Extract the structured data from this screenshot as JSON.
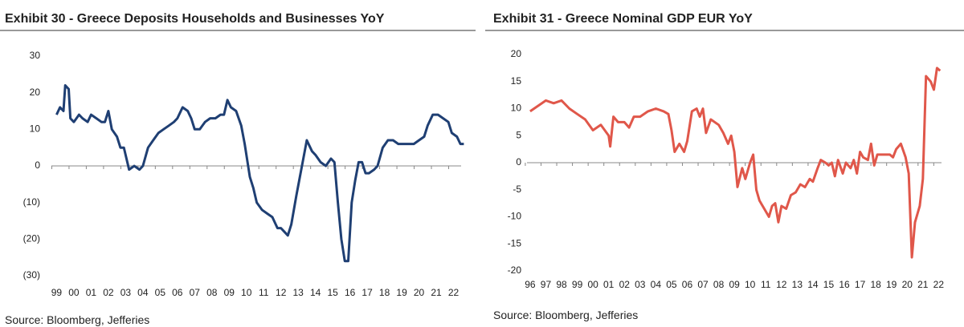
{
  "chart_data": [
    {
      "type": "line",
      "title": "Exhibit 30 - Greece Deposits Households and Businesses YoY",
      "source": "Source: Bloomberg, Jefferies",
      "color": "#1f3f73",
      "xlim": [
        1998.7,
        2023
      ],
      "ylim": [
        -30,
        30
      ],
      "yticks": [
        {
          "value": 30,
          "label": "30"
        },
        {
          "value": 20,
          "label": "20"
        },
        {
          "value": 10,
          "label": "10"
        },
        {
          "value": 0,
          "label": "0"
        },
        {
          "value": -10,
          "label": "(10)"
        },
        {
          "value": -20,
          "label": "(20)"
        },
        {
          "value": -30,
          "label": "(30)"
        }
      ],
      "xticks": [
        {
          "value": 1999,
          "label": "99"
        },
        {
          "value": 2000,
          "label": "00"
        },
        {
          "value": 2001,
          "label": "01"
        },
        {
          "value": 2002,
          "label": "02"
        },
        {
          "value": 2003,
          "label": "03"
        },
        {
          "value": 2004,
          "label": "04"
        },
        {
          "value": 2005,
          "label": "05"
        },
        {
          "value": 2006,
          "label": "06"
        },
        {
          "value": 2007,
          "label": "07"
        },
        {
          "value": 2008,
          "label": "08"
        },
        {
          "value": 2009,
          "label": "09"
        },
        {
          "value": 2010,
          "label": "10"
        },
        {
          "value": 2011,
          "label": "11"
        },
        {
          "value": 2012,
          "label": "12"
        },
        {
          "value": 2013,
          "label": "13"
        },
        {
          "value": 2014,
          "label": "14"
        },
        {
          "value": 2015,
          "label": "15"
        },
        {
          "value": 2016,
          "label": "16"
        },
        {
          "value": 2017,
          "label": "17"
        },
        {
          "value": 2018,
          "label": "18"
        },
        {
          "value": 2019,
          "label": "19"
        },
        {
          "value": 2020,
          "label": "20"
        },
        {
          "value": 2021,
          "label": "21"
        },
        {
          "value": 2022,
          "label": "22"
        }
      ],
      "x": [
        1999.0,
        1999.2,
        1999.4,
        1999.5,
        1999.7,
        1999.8,
        2000.0,
        2000.3,
        2000.5,
        2000.8,
        2001.0,
        2001.3,
        2001.6,
        2001.8,
        2002.0,
        2002.2,
        2002.5,
        2002.7,
        2002.9,
        2003.1,
        2003.2,
        2003.5,
        2003.8,
        2004.0,
        2004.3,
        2004.6,
        2004.9,
        2005.2,
        2005.5,
        2005.8,
        2006.0,
        2006.3,
        2006.6,
        2006.8,
        2007.0,
        2007.3,
        2007.6,
        2007.9,
        2008.2,
        2008.5,
        2008.7,
        2008.9,
        2009.1,
        2009.4,
        2009.7,
        2009.9,
        2010.2,
        2010.4,
        2010.6,
        2010.9,
        2011.2,
        2011.5,
        2011.8,
        2012.0,
        2012.2,
        2012.4,
        2012.6,
        2012.9,
        2013.1,
        2013.3,
        2013.5,
        2013.8,
        2014.0,
        2014.3,
        2014.6,
        2014.9,
        2015.1,
        2015.3,
        2015.5,
        2015.7,
        2015.9,
        2016.1,
        2016.3,
        2016.5,
        2016.7,
        2016.9,
        2017.1,
        2017.4,
        2017.6,
        2017.9,
        2018.2,
        2018.5,
        2018.8,
        2019.1,
        2019.4,
        2019.7,
        2020.0,
        2020.3,
        2020.5,
        2020.8,
        2021.1,
        2021.4,
        2021.7,
        2021.9,
        2022.2,
        2022.4,
        2022.6
      ],
      "values": [
        14,
        16,
        15,
        22,
        21,
        13,
        12,
        14,
        13,
        12,
        14,
        13,
        12,
        12,
        15,
        10,
        8,
        5,
        5,
        1,
        -1,
        0,
        -1,
        0,
        5,
        7,
        9,
        10,
        11,
        12,
        13,
        16,
        15,
        13,
        10,
        10,
        12,
        13,
        13,
        14,
        14,
        18,
        16,
        15,
        11,
        6,
        -3,
        -6,
        -10,
        -12,
        -13,
        -14,
        -17,
        -17,
        -18,
        -19,
        -16,
        -8,
        -3,
        2,
        7,
        4,
        3,
        1,
        0,
        2,
        1,
        -10,
        -20,
        -26,
        -26,
        -10,
        -4,
        1,
        1,
        -2,
        -2,
        -1,
        0,
        5,
        7,
        7,
        6,
        6,
        6,
        6,
        7,
        8,
        11,
        14,
        14,
        13,
        12,
        9,
        8,
        6,
        6
      ]
    },
    {
      "type": "line",
      "title": "Exhibit 31 - Greece Nominal GDP EUR YoY",
      "source": "Source: Bloomberg, Jefferies",
      "color": "#e0574a",
      "xlim": [
        1995.8,
        2022.8
      ],
      "ylim": [
        -20,
        20
      ],
      "yticks": [
        20,
        15,
        10,
        5,
        0,
        -5,
        -10,
        -15,
        -20
      ],
      "xticks": [
        {
          "value": 1996,
          "label": "96"
        },
        {
          "value": 1997,
          "label": "97"
        },
        {
          "value": 1998,
          "label": "98"
        },
        {
          "value": 1999,
          "label": "99"
        },
        {
          "value": 2000,
          "label": "00"
        },
        {
          "value": 2001,
          "label": "01"
        },
        {
          "value": 2002,
          "label": "02"
        },
        {
          "value": 2003,
          "label": "03"
        },
        {
          "value": 2004,
          "label": "04"
        },
        {
          "value": 2005,
          "label": "05"
        },
        {
          "value": 2006,
          "label": "06"
        },
        {
          "value": 2007,
          "label": "07"
        },
        {
          "value": 2008,
          "label": "08"
        },
        {
          "value": 2009,
          "label": "09"
        },
        {
          "value": 2010,
          "label": "10"
        },
        {
          "value": 2011,
          "label": "11"
        },
        {
          "value": 2012,
          "label": "12"
        },
        {
          "value": 2013,
          "label": "13"
        },
        {
          "value": 2014,
          "label": "14"
        },
        {
          "value": 2015,
          "label": "15"
        },
        {
          "value": 2016,
          "label": "16"
        },
        {
          "value": 2017,
          "label": "17"
        },
        {
          "value": 2018,
          "label": "18"
        },
        {
          "value": 2019,
          "label": "19"
        },
        {
          "value": 2020,
          "label": "20"
        },
        {
          "value": 2021,
          "label": "21"
        },
        {
          "value": 2022,
          "label": "22"
        }
      ],
      "x": [
        1996.0,
        1996.5,
        1997.0,
        1997.5,
        1998.0,
        1998.5,
        1999.0,
        1999.5,
        2000.0,
        2000.5,
        2001.0,
        2001.1,
        2001.3,
        2001.6,
        2002.0,
        2002.3,
        2002.6,
        2003.0,
        2003.5,
        2004.0,
        2004.5,
        2004.8,
        2005.0,
        2005.2,
        2005.5,
        2005.8,
        2006.0,
        2006.3,
        2006.6,
        2006.8,
        2007.0,
        2007.2,
        2007.5,
        2008.0,
        2008.3,
        2008.6,
        2008.8,
        2009.0,
        2009.2,
        2009.5,
        2009.7,
        2010.0,
        2010.2,
        2010.4,
        2010.6,
        2010.9,
        2011.2,
        2011.4,
        2011.6,
        2011.8,
        2012.0,
        2012.3,
        2012.6,
        2012.9,
        2013.2,
        2013.5,
        2013.8,
        2014.0,
        2014.3,
        2014.5,
        2014.8,
        2015.0,
        2015.2,
        2015.4,
        2015.6,
        2015.9,
        2016.1,
        2016.4,
        2016.6,
        2016.8,
        2017.0,
        2017.2,
        2017.5,
        2017.7,
        2017.9,
        2018.1,
        2018.5,
        2018.9,
        2019.1,
        2019.3,
        2019.6,
        2019.9,
        2020.1,
        2020.3,
        2020.5,
        2020.8,
        2021.0,
        2021.2,
        2021.5,
        2021.7,
        2021.9,
        2022.1
      ],
      "values": [
        9.5,
        10.5,
        11.5,
        11,
        11.5,
        10,
        9,
        8,
        6,
        7,
        5,
        3,
        8.5,
        7.5,
        7.5,
        6.5,
        8.5,
        8.5,
        9.5,
        10,
        9.5,
        9,
        6,
        2,
        3.5,
        2,
        4,
        9.5,
        10,
        8.5,
        10,
        5.5,
        8,
        7,
        5.5,
        3.5,
        5,
        2,
        -4.5,
        -1,
        -3,
        0,
        1.5,
        -5,
        -7,
        -8.5,
        -10,
        -8,
        -7.5,
        -11,
        -8,
        -8.5,
        -6,
        -5.5,
        -4,
        -4.5,
        -3,
        -3.5,
        -1,
        0.5,
        0,
        -0.5,
        0,
        -2.5,
        0.5,
        -2,
        0,
        -1,
        0.5,
        -2,
        2,
        1,
        0.5,
        3.5,
        -0.5,
        1.5,
        1.5,
        1.5,
        1,
        2.5,
        3.5,
        1,
        -2,
        -17.5,
        -11,
        -8,
        -3,
        16,
        15,
        13.5,
        17.5,
        17
      ]
    }
  ]
}
